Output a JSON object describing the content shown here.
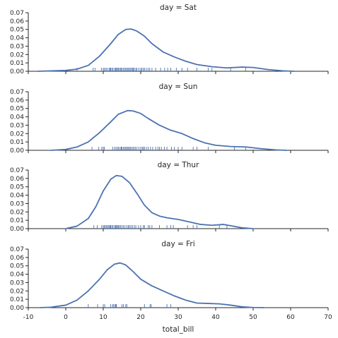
{
  "chart_data": {
    "type": "line",
    "xlabel": "total_bill",
    "xlim": [
      -10,
      70
    ],
    "ylim": [
      0,
      0.07
    ],
    "x_ticks": [
      -10,
      0,
      10,
      20,
      30,
      40,
      50,
      60,
      70
    ],
    "y_ticks": [
      "0.00",
      "0.01",
      "0.02",
      "0.03",
      "0.04",
      "0.05",
      "0.06",
      "0.07"
    ],
    "colors": {
      "line": "#4c72b0",
      "rug": "#4c72b0",
      "axis": "#262626"
    },
    "panels": [
      {
        "title": "day = Sat",
        "kde": [
          [
            -7.5,
            0
          ],
          [
            0,
            0.001
          ],
          [
            3,
            0.0025
          ],
          [
            6,
            0.007
          ],
          [
            9,
            0.018
          ],
          [
            12,
            0.033
          ],
          [
            14,
            0.044
          ],
          [
            16,
            0.05
          ],
          [
            17.5,
            0.0505
          ],
          [
            19,
            0.048
          ],
          [
            21,
            0.042
          ],
          [
            23,
            0.033
          ],
          [
            26,
            0.023
          ],
          [
            29,
            0.017
          ],
          [
            32,
            0.012
          ],
          [
            35,
            0.008
          ],
          [
            39,
            0.0055
          ],
          [
            43,
            0.004
          ],
          [
            47,
            0.005
          ],
          [
            50,
            0.0045
          ],
          [
            54,
            0.002
          ],
          [
            58,
            0.0005
          ],
          [
            61,
            0
          ]
        ],
        "rug": [
          3,
          7.3,
          7.8,
          9.5,
          10,
          10.3,
          10.7,
          11,
          11.5,
          11.8,
          12,
          12.3,
          12.6,
          13,
          13.3,
          13.5,
          13.8,
          14,
          14.3,
          14.6,
          14.9,
          15,
          15.4,
          15.7,
          16,
          16.3,
          16.6,
          16.9,
          17.2,
          17.5,
          17.8,
          18,
          18.3,
          18.7,
          19,
          19.5,
          20,
          20.3,
          20.7,
          21,
          21.5,
          22,
          22.4,
          23,
          24,
          25.3,
          26.4,
          27.2,
          28,
          29.5,
          31,
          32.5,
          35,
          38,
          39,
          44,
          48
        ]
      },
      {
        "title": "day = Sun",
        "kde": [
          [
            -4,
            0
          ],
          [
            0,
            0.001
          ],
          [
            3,
            0.004
          ],
          [
            6,
            0.01
          ],
          [
            9,
            0.021
          ],
          [
            12,
            0.034
          ],
          [
            14,
            0.043
          ],
          [
            16.5,
            0.0475
          ],
          [
            18,
            0.047
          ],
          [
            20,
            0.044
          ],
          [
            22,
            0.038
          ],
          [
            25,
            0.03
          ],
          [
            28,
            0.024
          ],
          [
            31,
            0.02
          ],
          [
            34,
            0.014
          ],
          [
            37,
            0.009
          ],
          [
            40,
            0.006
          ],
          [
            44,
            0.0045
          ],
          [
            48,
            0.004
          ],
          [
            52,
            0.002
          ],
          [
            56,
            0.0005
          ],
          [
            59,
            0
          ]
        ],
        "rug": [
          7,
          8.8,
          9.6,
          10,
          10.3,
          12.5,
          13,
          13.4,
          13.8,
          14.1,
          14.5,
          14.8,
          15,
          15.4,
          15.7,
          16,
          16.3,
          16.6,
          16.9,
          17.2,
          17.5,
          17.9,
          18.2,
          18.6,
          19,
          19.5,
          20,
          20.4,
          20.7,
          21,
          21.5,
          22,
          22.6,
          23.2,
          24,
          24.6,
          25,
          25.5,
          26.3,
          27,
          28.2,
          29,
          30,
          31,
          34,
          35,
          38,
          45,
          48
        ]
      },
      {
        "title": "day = Thur",
        "kde": [
          [
            0,
            0
          ],
          [
            3,
            0.003
          ],
          [
            6,
            0.012
          ],
          [
            8,
            0.026
          ],
          [
            10,
            0.045
          ],
          [
            12,
            0.059
          ],
          [
            13.5,
            0.0635
          ],
          [
            15,
            0.0625
          ],
          [
            17,
            0.055
          ],
          [
            19,
            0.042
          ],
          [
            21,
            0.028
          ],
          [
            23,
            0.019
          ],
          [
            25,
            0.015
          ],
          [
            27,
            0.013
          ],
          [
            30,
            0.011
          ],
          [
            33,
            0.008
          ],
          [
            36,
            0.005
          ],
          [
            39,
            0.004
          ],
          [
            42,
            0.005
          ],
          [
            44,
            0.0035
          ],
          [
            47,
            0.001
          ],
          [
            50,
            0
          ]
        ],
        "rug": [
          7.5,
          8.4,
          9.6,
          10,
          10.3,
          10.6,
          10.9,
          11.2,
          11.5,
          11.8,
          12,
          12.3,
          12.6,
          13,
          13.3,
          13.5,
          13.8,
          14,
          14.3,
          14.6,
          15,
          15.4,
          15.8,
          16.3,
          16.7,
          17,
          17.4,
          17.8,
          18.3,
          18.7,
          19.4,
          20,
          20.7,
          21,
          22,
          22.4,
          23,
          25,
          27,
          28,
          28.7,
          32.5,
          34,
          35,
          41,
          43
        ]
      },
      {
        "title": "day = Fri",
        "kde": [
          [
            -7,
            0
          ],
          [
            -4,
            0.0005
          ],
          [
            0,
            0.003
          ],
          [
            3,
            0.009
          ],
          [
            6,
            0.02
          ],
          [
            9,
            0.034
          ],
          [
            11,
            0.045
          ],
          [
            13,
            0.052
          ],
          [
            14.5,
            0.0535
          ],
          [
            16,
            0.051
          ],
          [
            18,
            0.043
          ],
          [
            20,
            0.034
          ],
          [
            23,
            0.026
          ],
          [
            26,
            0.02
          ],
          [
            29,
            0.014
          ],
          [
            32,
            0.009
          ],
          [
            35,
            0.0055
          ],
          [
            38,
            0.005
          ],
          [
            41,
            0.0045
          ],
          [
            44,
            0.003
          ],
          [
            47,
            0.001
          ],
          [
            50,
            0.0002
          ],
          [
            53,
            0
          ]
        ],
        "rug": [
          6,
          8.5,
          10,
          10.4,
          12,
          12.5,
          12.8,
          13.2,
          13.4,
          13.5,
          15,
          15.4,
          16,
          16.3,
          21,
          22.5,
          22.8,
          27,
          28
        ]
      }
    ]
  }
}
